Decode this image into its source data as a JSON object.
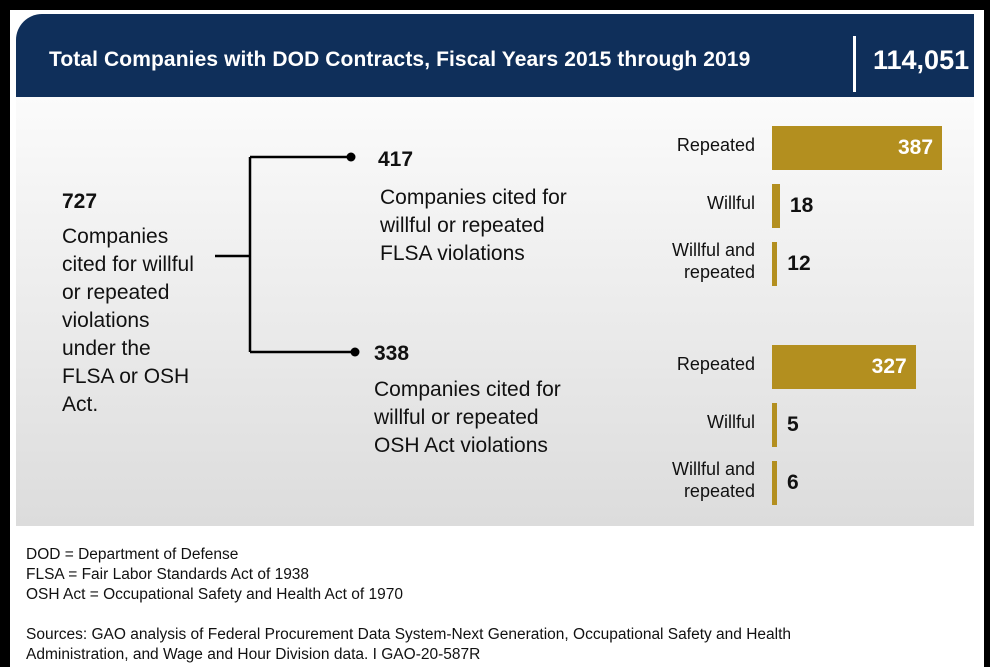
{
  "header": {
    "title": "Total Companies with DOD Contracts, Fiscal Years 2015 through 2019",
    "total": "114,051"
  },
  "summary": {
    "count": "727",
    "description": "Companies cited for willful or repeated violations under the FLSA or OSH Act."
  },
  "groups": [
    {
      "count": "417",
      "description": "Companies cited for willful or repeated FLSA violations"
    },
    {
      "count": "338",
      "description": "Companies cited for willful or repeated OSH Act violations"
    }
  ],
  "chart_data": [
    {
      "type": "bar",
      "orientation": "horizontal",
      "categories": [
        "Repeated",
        "Willful",
        "Willful and repeated"
      ],
      "values": [
        387,
        18,
        12
      ],
      "title": "417 Companies cited for willful or repeated FLSA violations"
    },
    {
      "type": "bar",
      "orientation": "horizontal",
      "categories": [
        "Repeated",
        "Willful",
        "Willful and repeated"
      ],
      "values": [
        327,
        5,
        6
      ],
      "title": "338 Companies cited for willful or repeated OSH Act violations"
    }
  ],
  "colors": {
    "banner": "#0f2f5a",
    "bar": "#b38f1f",
    "panel": "#e6e6e6"
  },
  "notes": [
    "DOD = Department of Defense",
    "FLSA = Fair Labor Standards Act of 1938",
    "OSH Act = Occupational Safety and Health Act of 1970"
  ],
  "sources": "Sources: GAO analysis of Federal Procurement Data System-Next Generation, Occupational Safety and Health Administration, and Wage and Hour Division data. I GAO-20-587R"
}
